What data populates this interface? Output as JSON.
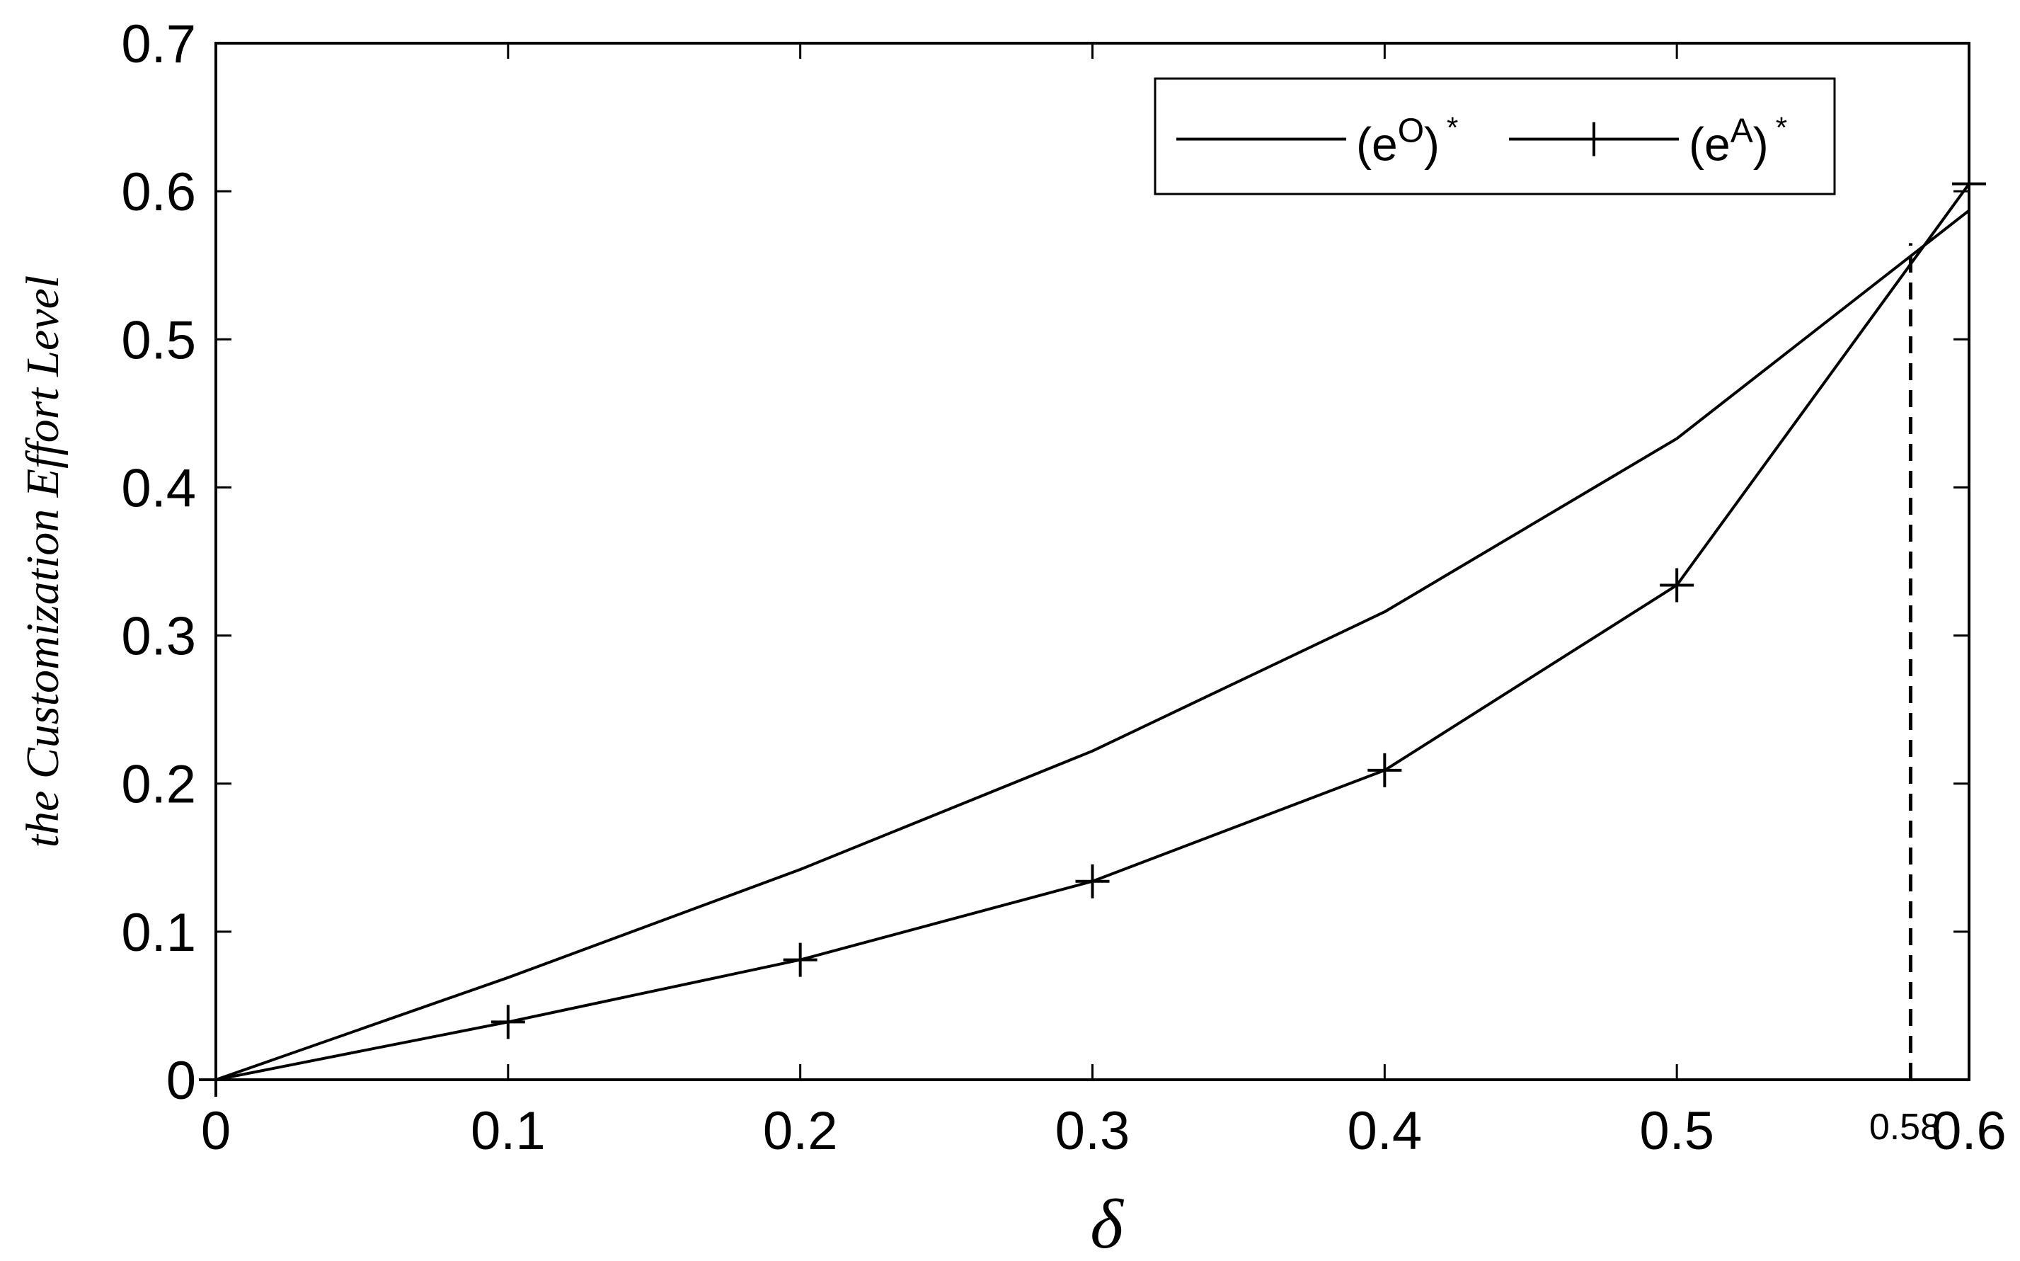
{
  "chart_data": {
    "type": "line",
    "xlabel": "δ",
    "ylabel": "the Customization Effort Level",
    "xlim": [
      0,
      0.6
    ],
    "ylim": [
      0,
      0.7
    ],
    "xticks": [
      0,
      0.1,
      0.2,
      0.3,
      0.4,
      0.5,
      0.6
    ],
    "xtick_labels": [
      "0",
      "0.1",
      "0.2",
      "0.3",
      "0.4",
      "0.5",
      "0.6"
    ],
    "yticks": [
      0,
      0.1,
      0.2,
      0.3,
      0.4,
      0.5,
      0.6,
      0.7
    ],
    "ytick_labels": [
      "0",
      "0.1",
      "0.2",
      "0.3",
      "0.4",
      "0.5",
      "0.6",
      "0.7"
    ],
    "grid": false,
    "legend_position": "top-right",
    "series": [
      {
        "name": "(eO)*",
        "name_base": "(e",
        "name_sup": "O",
        "name_close": ")",
        "name_star": "*",
        "marker": "none",
        "color": "#000000",
        "x": [
          0,
          0.1,
          0.2,
          0.3,
          0.4,
          0.5,
          0.6
        ],
        "y": [
          0,
          0.069,
          0.142,
          0.222,
          0.316,
          0.433,
          0.587
        ]
      },
      {
        "name": "(eA)*",
        "name_base": "(e",
        "name_sup": "A",
        "name_close": ")",
        "name_star": "*",
        "marker": "plus",
        "color": "#000000",
        "x": [
          0,
          0.1,
          0.2,
          0.3,
          0.4,
          0.5,
          0.6
        ],
        "y": [
          0,
          0.039,
          0.081,
          0.134,
          0.209,
          0.334,
          0.605
        ]
      }
    ],
    "annotations": [
      {
        "type": "vline",
        "x": 0.58,
        "y_top": 0.565,
        "style": "dashed",
        "label": "0.58"
      }
    ]
  }
}
